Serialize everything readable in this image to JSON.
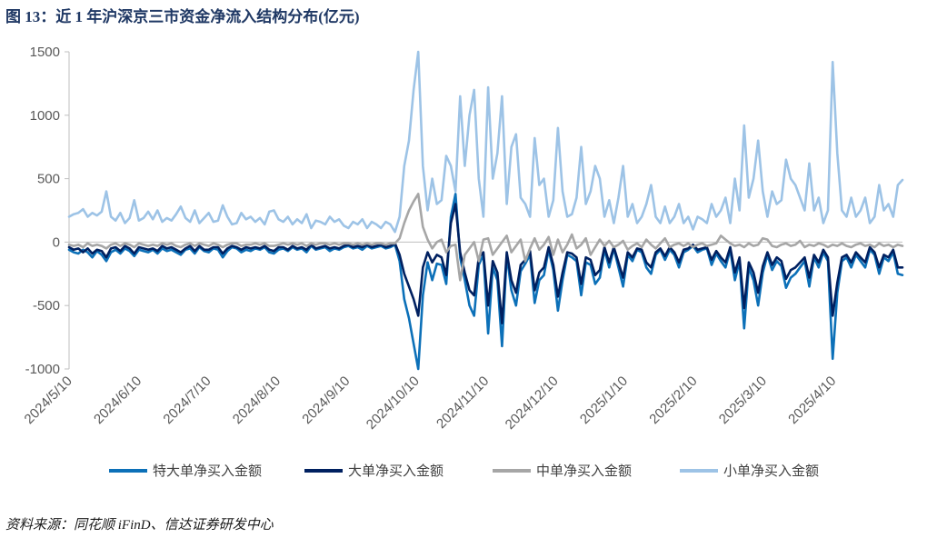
{
  "title": "图 13：近 1 年沪深京三市资金净流入结构分布(亿元)",
  "source": "资料来源：同花顺 iFinD、信达证券研发中心",
  "chart_data": {
    "type": "line",
    "title": "图 13：近 1 年沪深京三市资金净流入结构分布(亿元)",
    "xlabel": "",
    "ylabel": "",
    "ylim": [
      -1000,
      1500
    ],
    "y_ticks": [
      -1000,
      -500,
      0,
      500,
      1000,
      1500
    ],
    "y_tick_labels": [
      "-1000",
      "-500",
      "0",
      "500",
      "1000",
      "1500"
    ],
    "x_tick_labels": [
      "2024/5/10",
      "2024/6/10",
      "2024/7/10",
      "2024/8/10",
      "2024/9/10",
      "2024/10/10",
      "2024/11/10",
      "2024/12/10",
      "2025/1/10",
      "2025/2/10",
      "2025/3/10",
      "2025/4/10"
    ],
    "grid": false,
    "legend_position": "bottom",
    "series": [
      {
        "name": "特大单净买入金额",
        "color": "#0c70b8",
        "values": [
          -60,
          -80,
          -90,
          -60,
          -80,
          -120,
          -70,
          -100,
          -150,
          -80,
          -60,
          -90,
          -50,
          -70,
          -110,
          -60,
          -70,
          -80,
          -60,
          -90,
          -50,
          -70,
          -60,
          -80,
          -100,
          -60,
          -50,
          -90,
          -40,
          -70,
          -80,
          -50,
          -60,
          -120,
          -70,
          -40,
          -50,
          -80,
          -60,
          -70,
          -50,
          -60,
          -40,
          -80,
          -90,
          -60,
          -50,
          -70,
          -40,
          -60,
          -50,
          -80,
          -30,
          -60,
          -50,
          -40,
          -70,
          -50,
          -60,
          -40,
          -30,
          -50,
          -40,
          -60,
          -30,
          -50,
          -40,
          -30,
          -50,
          -40,
          -20,
          -150,
          -450,
          -600,
          -800,
          -1000,
          -420,
          -160,
          -300,
          -170,
          -180,
          -330,
          200,
          380,
          -120,
          -300,
          -500,
          -580,
          -180,
          -100,
          -720,
          -200,
          -300,
          -820,
          -100,
          -380,
          -500,
          -230,
          -170,
          -100,
          -480,
          -300,
          -260,
          -60,
          -220,
          -540,
          -300,
          -100,
          -120,
          -150,
          -420,
          -160,
          -180,
          -330,
          -280,
          -60,
          -200,
          -50,
          -200,
          -350,
          -100,
          -150,
          -60,
          -80,
          -200,
          -250,
          -100,
          -60,
          -140,
          -60,
          -100,
          -200,
          -80,
          -60,
          -30,
          -80,
          -60,
          -50,
          -180,
          -90,
          -150,
          -200,
          -60,
          -300,
          -150,
          -680,
          -200,
          -300,
          -500,
          -240,
          -100,
          -220,
          -150,
          -190,
          -360,
          -280,
          -250,
          -200,
          -150,
          -350,
          -120,
          -200,
          -80,
          -150,
          -920,
          -400,
          -150,
          -120,
          -200,
          -100,
          -150,
          -200,
          -60,
          -100,
          -250,
          -120,
          -150,
          -80,
          -250,
          -260
        ]
      },
      {
        "name": "大单净买入金额",
        "color": "#002060",
        "values": [
          -40,
          -60,
          -50,
          -80,
          -50,
          -90,
          -60,
          -70,
          -120,
          -50,
          -40,
          -70,
          -30,
          -50,
          -90,
          -40,
          -50,
          -60,
          -50,
          -70,
          -30,
          -50,
          -40,
          -60,
          -80,
          -50,
          -30,
          -70,
          -30,
          -60,
          -60,
          -40,
          -40,
          -90,
          -50,
          -30,
          -40,
          -60,
          -40,
          -50,
          -40,
          -50,
          -30,
          -60,
          -70,
          -40,
          -40,
          -60,
          -30,
          -50,
          -40,
          -60,
          -20,
          -50,
          -40,
          -30,
          -50,
          -40,
          -50,
          -30,
          -20,
          -40,
          -30,
          -40,
          -20,
          -40,
          -30,
          -20,
          -40,
          -30,
          -10,
          -100,
          -250,
          -350,
          -450,
          -580,
          -200,
          -80,
          -160,
          -100,
          -120,
          -260,
          150,
          300,
          -80,
          -240,
          -380,
          -420,
          -120,
          -80,
          -500,
          -150,
          -240,
          -640,
          -80,
          -300,
          -400,
          -180,
          -140,
          -70,
          -380,
          -240,
          -200,
          -40,
          -180,
          -430,
          -240,
          -80,
          -90,
          -120,
          -330,
          -120,
          -140,
          -260,
          -220,
          -40,
          -160,
          -40,
          -160,
          -280,
          -80,
          -120,
          -50,
          -60,
          -160,
          -200,
          -80,
          -50,
          -110,
          -40,
          -80,
          -160,
          -60,
          -50,
          -20,
          -60,
          -50,
          -40,
          -140,
          -70,
          -120,
          -160,
          -40,
          -240,
          -120,
          -520,
          -160,
          -240,
          -400,
          -190,
          -80,
          -180,
          -120,
          -150,
          -290,
          -220,
          -200,
          -160,
          -120,
          -280,
          -100,
          -160,
          -60,
          -120,
          -580,
          -320,
          -120,
          -100,
          -160,
          -80,
          -120,
          -160,
          -40,
          -80,
          -200,
          -100,
          -120,
          -60,
          -200,
          -200
        ]
      },
      {
        "name": "中单净买入金额",
        "color": "#a6a6a6",
        "values": [
          -20,
          -30,
          -20,
          -40,
          -10,
          -30,
          -20,
          -30,
          -50,
          -20,
          -10,
          -30,
          -10,
          -20,
          -40,
          -10,
          -20,
          -30,
          -20,
          -30,
          -10,
          -20,
          -10,
          -30,
          -40,
          -20,
          -10,
          -30,
          -10,
          -20,
          -30,
          -10,
          -20,
          -40,
          -20,
          -10,
          -10,
          -30,
          -20,
          -20,
          -10,
          -20,
          -10,
          -30,
          -30,
          -20,
          -10,
          -20,
          -10,
          -20,
          -10,
          -30,
          -10,
          -20,
          -10,
          -10,
          -20,
          -10,
          -20,
          -10,
          -10,
          -20,
          -10,
          -20,
          -10,
          -20,
          -10,
          -10,
          -20,
          -10,
          -10,
          30,
          150,
          250,
          320,
          380,
          120,
          20,
          -50,
          0,
          20,
          -80,
          -30,
          -20,
          -300,
          -100,
          -50,
          0,
          -150,
          20,
          30,
          -100,
          -50,
          0,
          50,
          -80,
          -30,
          20,
          -150,
          -50,
          30,
          -60,
          -20,
          40,
          -100,
          20,
          -80,
          -20,
          60,
          -50,
          -20,
          30,
          -100,
          -40,
          20,
          -30,
          10,
          -40,
          -20,
          10,
          -60,
          -30,
          -10,
          -40,
          20,
          -20,
          -50,
          -10,
          30,
          -40,
          -20,
          -10,
          -30,
          -10,
          -40,
          -20,
          -10,
          -30,
          -20,
          -10,
          50,
          20,
          -10,
          -30,
          -20,
          -40,
          -10,
          -30,
          -20,
          30,
          20,
          -30,
          -40,
          -20,
          -10,
          -30,
          -20,
          10,
          -40,
          -20,
          -30,
          -10,
          -20,
          -40,
          -20,
          -30,
          -10,
          -30,
          -40,
          -20,
          -10,
          -30,
          -20,
          -40,
          -10,
          -30,
          -20,
          -40,
          -20,
          -30
        ]
      },
      {
        "name": "小单净买入金额",
        "color": "#9dc3e6",
        "values": [
          200,
          220,
          230,
          260,
          200,
          230,
          210,
          240,
          400,
          200,
          170,
          230,
          150,
          190,
          330,
          170,
          190,
          240,
          180,
          250,
          160,
          190,
          170,
          220,
          280,
          190,
          160,
          250,
          150,
          190,
          230,
          160,
          170,
          290,
          200,
          140,
          150,
          230,
          180,
          200,
          160,
          190,
          140,
          240,
          250,
          180,
          160,
          200,
          140,
          180,
          150,
          220,
          110,
          170,
          160,
          140,
          200,
          160,
          180,
          130,
          110,
          160,
          140,
          180,
          110,
          160,
          140,
          110,
          160,
          140,
          80,
          200,
          600,
          800,
          1200,
          1500,
          600,
          250,
          500,
          300,
          330,
          680,
          600,
          400,
          1150,
          600,
          1000,
          1200,
          500,
          200,
          1220,
          500,
          700,
          1150,
          300,
          750,
          850,
          350,
          300,
          200,
          820,
          450,
          500,
          200,
          330,
          900,
          400,
          200,
          220,
          350,
          750,
          300,
          400,
          600,
          500,
          200,
          330,
          150,
          350,
          600,
          200,
          300,
          150,
          200,
          300,
          450,
          200,
          150,
          280,
          150,
          200,
          300,
          150,
          200,
          100,
          200,
          180,
          150,
          300,
          200,
          250,
          350,
          150,
          500,
          250,
          920,
          350,
          500,
          800,
          400,
          200,
          400,
          300,
          330,
          650,
          500,
          450,
          350,
          250,
          620,
          250,
          350,
          150,
          250,
          1420,
          700,
          250,
          200,
          350,
          200,
          250,
          350,
          150,
          200,
          450,
          250,
          300,
          200,
          450,
          490
        ]
      }
    ]
  }
}
